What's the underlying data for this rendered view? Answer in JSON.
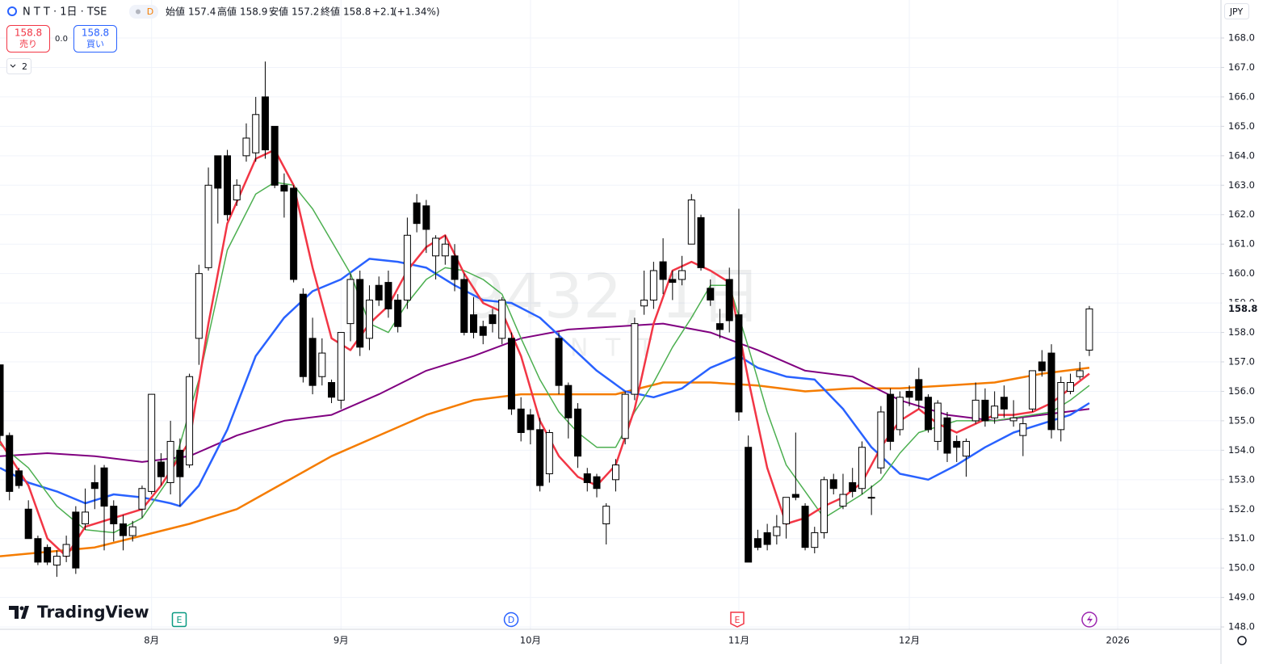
{
  "header": {
    "symbol": "N T T · 1日 · TSE",
    "badge": "D",
    "open_label": "始値",
    "high_label": "高値",
    "low_label": "安値",
    "close_label": "終値",
    "change": "+2.1",
    "change_pct": "(+1.34%)",
    "sell_label": "売り",
    "spread": "0.0",
    "buy_label": "買い",
    "indicators_count": "2",
    "currency": "JPY"
  },
  "watermark": {
    "title": "9432, 1日",
    "subtitle": "N T T"
  },
  "events": [
    "E",
    "D",
    "E"
  ],
  "logo": "TradingView",
  "chart_data": {
    "type": "candlestick",
    "x": [
      0,
      1,
      2,
      3,
      4,
      5,
      6,
      7,
      8,
      9,
      10,
      11,
      12,
      13,
      14,
      15,
      16,
      17,
      18,
      19,
      20,
      21,
      22,
      23,
      24,
      25,
      26,
      27,
      28,
      29,
      30,
      31,
      32,
      33,
      34,
      35,
      36,
      37,
      38,
      39,
      40,
      41,
      42,
      43,
      44,
      45,
      46,
      47,
      48,
      49,
      50,
      51,
      52,
      53,
      54,
      55,
      56,
      57,
      58,
      59,
      60,
      61,
      62,
      63,
      64,
      65,
      66,
      67,
      68,
      69,
      70,
      71,
      72,
      73,
      74,
      75,
      76,
      77,
      78,
      79,
      80,
      81,
      82,
      83,
      84,
      85,
      86,
      87,
      88,
      89,
      90,
      91,
      92,
      93,
      94,
      95,
      96,
      97,
      98,
      99,
      100,
      101,
      102,
      103,
      104,
      105,
      106,
      107,
      108,
      109,
      110,
      111,
      112,
      113,
      114,
      115
    ],
    "open": [
      156.9,
      154.5,
      153.3,
      152.0,
      151.0,
      150.7,
      150.1,
      150.4,
      151.9,
      151.5,
      152.9,
      153.4,
      152.1,
      151.5,
      151.1,
      152.0,
      152.6,
      153.6,
      152.9,
      154.0,
      153.5,
      157.8,
      160.2,
      164.0,
      164.0,
      162.5,
      164.0,
      164.1,
      166.0,
      165.0,
      163.0,
      162.9,
      159.3,
      157.8,
      156.5,
      156.3,
      155.7,
      158.3,
      159.8,
      157.8,
      159.6,
      159.7,
      159.1,
      159.1,
      162.4,
      162.3,
      160.6,
      160.6,
      160.6,
      159.8,
      158.6,
      158.2,
      158.6,
      157.8,
      157.8,
      155.4,
      155.2,
      154.7,
      153.2,
      157.8,
      156.2,
      155.4,
      153.2,
      153.1,
      151.5,
      153.0,
      154.4,
      155.9,
      158.9,
      159.1,
      160.4,
      159.8,
      159.8,
      161.0,
      161.9,
      159.5,
      158.3,
      159.8,
      158.6,
      154.1,
      151.0,
      151.2,
      151.1,
      151.5,
      152.5,
      152.1,
      150.7,
      151.2,
      153.0,
      152.1,
      152.9,
      152.7,
      152.4,
      153.4,
      155.9,
      154.7,
      156.0,
      156.4,
      155.8,
      154.3,
      155.1,
      154.3,
      153.8,
      155.0,
      155.7,
      155.1,
      155.8,
      155.0,
      154.5,
      155.4,
      157.0,
      157.3,
      154.7,
      156.0,
      156.5,
      157.4
    ],
    "high": [
      156.9,
      154.6,
      153.4,
      152.3,
      151.1,
      150.8,
      150.6,
      151.1,
      152.1,
      152.7,
      153.5,
      153.5,
      152.3,
      151.8,
      151.6,
      152.8,
      155.9,
      153.9,
      155.0,
      154.4,
      156.6,
      160.3,
      163.6,
      164.0,
      164.2,
      163.2,
      165.1,
      166.0,
      167.2,
      165.0,
      163.4,
      163.0,
      159.5,
      158.5,
      157.8,
      156.4,
      158.0,
      160.0,
      160.1,
      159.6,
      159.9,
      160.1,
      159.3,
      161.9,
      162.7,
      162.5,
      161.3,
      161.3,
      161.0,
      160.0,
      159.2,
      158.4,
      158.8,
      159.2,
      158.0,
      155.8,
      155.4,
      155.1,
      154.7,
      158.0,
      156.3,
      155.6,
      153.4,
      153.2,
      152.2,
      153.7,
      156.0,
      158.5,
      160.1,
      160.4,
      161.2,
      160.1,
      160.6,
      162.7,
      162.0,
      159.8,
      158.8,
      160.2,
      162.2,
      154.5,
      151.3,
      151.5,
      151.8,
      152.4,
      154.6,
      152.2,
      151.4,
      153.1,
      153.2,
      153.2,
      153.4,
      154.3,
      152.8,
      155.5,
      156.1,
      156.0,
      156.2,
      156.8,
      155.9,
      155.7,
      155.3,
      154.5,
      154.4,
      156.3,
      156.1,
      156.0,
      156.2,
      155.7,
      155.1,
      156.7,
      157.4,
      157.6,
      156.5,
      156.6,
      157.0,
      158.9
    ],
    "low": [
      154.3,
      152.3,
      152.7,
      151.0,
      150.1,
      150.1,
      149.7,
      150.2,
      149.8,
      151.3,
      152.0,
      150.6,
      150.9,
      150.6,
      150.9,
      151.7,
      152.5,
      152.8,
      152.5,
      152.1,
      153.4,
      156.9,
      160.1,
      161.7,
      161.8,
      162.3,
      163.8,
      163.8,
      163.9,
      162.9,
      161.9,
      159.7,
      156.3,
      155.9,
      156.2,
      155.6,
      155.4,
      157.7,
      157.2,
      157.4,
      158.9,
      158.5,
      158.0,
      158.8,
      161.4,
      160.7,
      159.8,
      160.3,
      159.4,
      157.9,
      157.8,
      157.6,
      158.0,
      157.6,
      155.2,
      154.3,
      154.2,
      152.6,
      152.9,
      155.9,
      154.4,
      153.4,
      152.6,
      152.4,
      150.8,
      152.6,
      154.2,
      155.7,
      158.6,
      158.8,
      159.3,
      159.1,
      159.6,
      161.0,
      160.1,
      158.9,
      157.8,
      158.0,
      155.0,
      150.2,
      150.6,
      150.6,
      150.8,
      151.0,
      152.3,
      150.6,
      150.5,
      151.0,
      152.5,
      152.0,
      152.4,
      152.5,
      151.8,
      153.2,
      154.0,
      154.5,
      155.5,
      155.4,
      154.6,
      154.0,
      153.6,
      153.6,
      153.1,
      154.9,
      154.8,
      154.9,
      155.1,
      154.8,
      153.8,
      155.3,
      156.5,
      154.4,
      154.3,
      155.9,
      156.4,
      157.2
    ],
    "close": [
      154.5,
      152.6,
      152.8,
      151.0,
      150.2,
      150.2,
      150.4,
      150.8,
      150.0,
      151.9,
      152.7,
      152.1,
      151.5,
      151.1,
      151.4,
      152.7,
      155.9,
      153.1,
      154.3,
      153.1,
      156.5,
      160.0,
      163.0,
      162.9,
      162.0,
      163.0,
      164.6,
      165.4,
      164.2,
      163.0,
      162.8,
      159.8,
      156.5,
      156.2,
      157.3,
      155.8,
      158.0,
      159.8,
      157.5,
      159.1,
      159.1,
      158.8,
      158.2,
      161.3,
      161.7,
      161.5,
      161.2,
      161.0,
      159.8,
      158.0,
      158.0,
      157.9,
      158.3,
      159.1,
      155.4,
      154.6,
      154.7,
      152.8,
      154.6,
      156.2,
      155.1,
      153.8,
      152.9,
      152.7,
      152.1,
      153.5,
      155.9,
      158.3,
      159.1,
      160.1,
      159.8,
      159.7,
      160.1,
      162.5,
      160.2,
      159.1,
      158.1,
      158.4,
      155.3,
      150.2,
      150.7,
      150.8,
      151.4,
      152.4,
      152.4,
      150.7,
      151.2,
      153.0,
      152.7,
      152.5,
      152.6,
      154.1,
      152.4,
      155.3,
      154.3,
      155.8,
      155.8,
      155.7,
      154.7,
      155.6,
      153.9,
      154.1,
      154.3,
      155.7,
      155.0,
      155.5,
      155.4,
      155.1,
      154.9,
      156.7,
      156.7,
      154.7,
      156.3,
      156.3,
      156.7,
      158.8
    ],
    "up_color": "#ffffff",
    "down_color": "#000000",
    "series": [
      {
        "color": "#f57c00",
        "width": 2.5,
        "x": [
          0,
          10,
          20,
          25,
          30,
          35,
          40,
          45,
          50,
          55,
          60,
          65,
          70,
          75,
          80,
          85,
          90,
          95,
          100,
          105,
          110,
          115
        ],
        "values": [
          150.4,
          150.7,
          151.5,
          152.0,
          152.9,
          153.8,
          154.5,
          155.2,
          155.7,
          155.9,
          155.9,
          155.9,
          156.3,
          156.3,
          156.2,
          156.0,
          156.1,
          156.1,
          156.2,
          156.3,
          156.6,
          156.8
        ]
      },
      {
        "color": "#800080",
        "width": 2,
        "x": [
          0,
          5,
          10,
          15,
          20,
          25,
          30,
          35,
          40,
          45,
          50,
          55,
          60,
          65,
          70,
          75,
          80,
          85,
          90,
          95,
          100,
          105,
          110,
          115
        ],
        "values": [
          153.8,
          153.9,
          153.8,
          153.6,
          153.8,
          154.5,
          155.0,
          155.2,
          155.9,
          156.7,
          157.2,
          157.8,
          158.1,
          158.2,
          158.3,
          158.0,
          157.4,
          156.7,
          156.5,
          155.7,
          155.2,
          155.0,
          155.2,
          155.4
        ]
      },
      {
        "color": "#2962ff",
        "width": 2.5,
        "x": [
          0,
          3,
          6,
          9,
          12,
          15,
          18,
          19,
          21,
          24,
          27,
          30,
          33,
          36,
          39,
          42,
          45,
          48,
          51,
          54,
          57,
          60,
          63,
          66,
          69,
          72,
          75,
          78,
          80,
          83,
          86,
          89,
          92,
          95,
          98,
          101,
          104,
          107,
          110,
          113,
          115
        ],
        "values": [
          153.4,
          152.9,
          152.6,
          152.2,
          152.5,
          152.4,
          152.2,
          152.1,
          152.8,
          154.7,
          157.2,
          158.5,
          159.4,
          159.8,
          160.5,
          160.4,
          160.2,
          159.6,
          159.1,
          159.0,
          158.5,
          157.6,
          156.7,
          156.0,
          155.8,
          156.1,
          156.8,
          157.2,
          156.8,
          156.5,
          156.4,
          155.4,
          154.1,
          153.2,
          153.0,
          153.5,
          154.1,
          154.6,
          154.9,
          155.2,
          155.6
        ]
      },
      {
        "color": "#4caf50",
        "width": 1.5,
        "x": [
          0,
          3,
          6,
          9,
          12,
          15,
          18,
          21,
          24,
          27,
          29,
          31,
          33,
          35,
          37,
          39,
          41,
          43,
          45,
          47,
          49,
          51,
          53,
          55,
          57,
          59,
          61,
          63,
          65,
          67,
          69,
          71,
          73,
          75,
          77,
          79,
          81,
          83,
          85,
          87,
          89,
          91,
          93,
          95,
          97,
          99,
          101,
          103,
          105,
          107,
          109,
          111,
          113,
          115
        ],
        "values": [
          154.2,
          153.4,
          152.1,
          151.3,
          151.2,
          151.7,
          153.1,
          156.4,
          160.8,
          162.7,
          163.1,
          163.0,
          162.2,
          161.1,
          160.0,
          158.3,
          158.0,
          159.0,
          159.8,
          160.2,
          160.1,
          159.8,
          159.3,
          157.8,
          156.4,
          155.3,
          154.6,
          154.1,
          154.1,
          155.3,
          156.3,
          157.5,
          158.5,
          159.6,
          159.6,
          157.5,
          155.3,
          153.5,
          152.6,
          151.7,
          152.1,
          152.5,
          153.0,
          153.9,
          154.6,
          154.8,
          155.0,
          155.0,
          155.0,
          155.1,
          155.2,
          155.3,
          155.7,
          156.2
        ]
      },
      {
        "color": "#f23645",
        "width": 2.5,
        "x": [
          0,
          3,
          5,
          7,
          9,
          12,
          15,
          17,
          20,
          22,
          24,
          27,
          29,
          31,
          33,
          35,
          37,
          39,
          41,
          43,
          45,
          47,
          49,
          51,
          53,
          55,
          57,
          59,
          61,
          63,
          65,
          67,
          69,
          71,
          73,
          75,
          77,
          79,
          81,
          83,
          85,
          87,
          89,
          91,
          93,
          95,
          97,
          99,
          101,
          103,
          105,
          107,
          109,
          111,
          113,
          115
        ],
        "values": [
          154.3,
          152.8,
          151.0,
          150.4,
          151.4,
          151.7,
          152.0,
          152.8,
          154.3,
          158.3,
          161.7,
          163.9,
          164.2,
          163.0,
          160.2,
          157.8,
          157.4,
          158.3,
          158.9,
          160.1,
          160.9,
          161.3,
          160.0,
          159.0,
          158.7,
          157.2,
          155.0,
          153.8,
          153.1,
          152.8,
          153.5,
          155.4,
          158.3,
          160.1,
          160.4,
          160.1,
          159.7,
          156.4,
          153.4,
          151.5,
          151.7,
          152.1,
          152.4,
          152.9,
          154.1,
          155.0,
          155.4,
          154.9,
          154.6,
          154.9,
          155.2,
          155.2,
          155.3,
          155.6,
          156.1,
          156.6
        ]
      }
    ],
    "xlim": [
      0,
      128.9
    ],
    "xticks": [
      {
        "value": 16,
        "label": "8月"
      },
      {
        "value": 36,
        "label": "9月"
      },
      {
        "value": 56,
        "label": "10月"
      },
      {
        "value": 78,
        "label": "11月"
      },
      {
        "value": 96,
        "label": "12月"
      },
      {
        "value": 118,
        "label": "2026"
      }
    ],
    "ylim": [
      147.92,
      169.29
    ],
    "yticks": [
      {
        "value": 148,
        "label": "148.0"
      },
      {
        "value": 149,
        "label": "149.0"
      },
      {
        "value": 150,
        "label": "150.0"
      },
      {
        "value": 151,
        "label": "151.0"
      },
      {
        "value": 152,
        "label": "152.0"
      },
      {
        "value": 153,
        "label": "153.0"
      },
      {
        "value": 154,
        "label": "154.0"
      },
      {
        "value": 155,
        "label": "155.0"
      },
      {
        "value": 156,
        "label": "156.0"
      },
      {
        "value": 157,
        "label": "157.0"
      },
      {
        "value": 158,
        "label": "158.0"
      },
      {
        "value": 159,
        "label": "159.0"
      },
      {
        "value": 160,
        "label": "160.0"
      },
      {
        "value": 161,
        "label": "161.0"
      },
      {
        "value": 162,
        "label": "162.0"
      },
      {
        "value": 163,
        "label": "163.0"
      },
      {
        "value": 164,
        "label": "164.0"
      },
      {
        "value": 165,
        "label": "165.0"
      },
      {
        "value": 166,
        "label": "166.0"
      },
      {
        "value": 167,
        "label": "167.0"
      },
      {
        "value": 168,
        "label": "168.0"
      }
    ],
    "grid": true
  }
}
